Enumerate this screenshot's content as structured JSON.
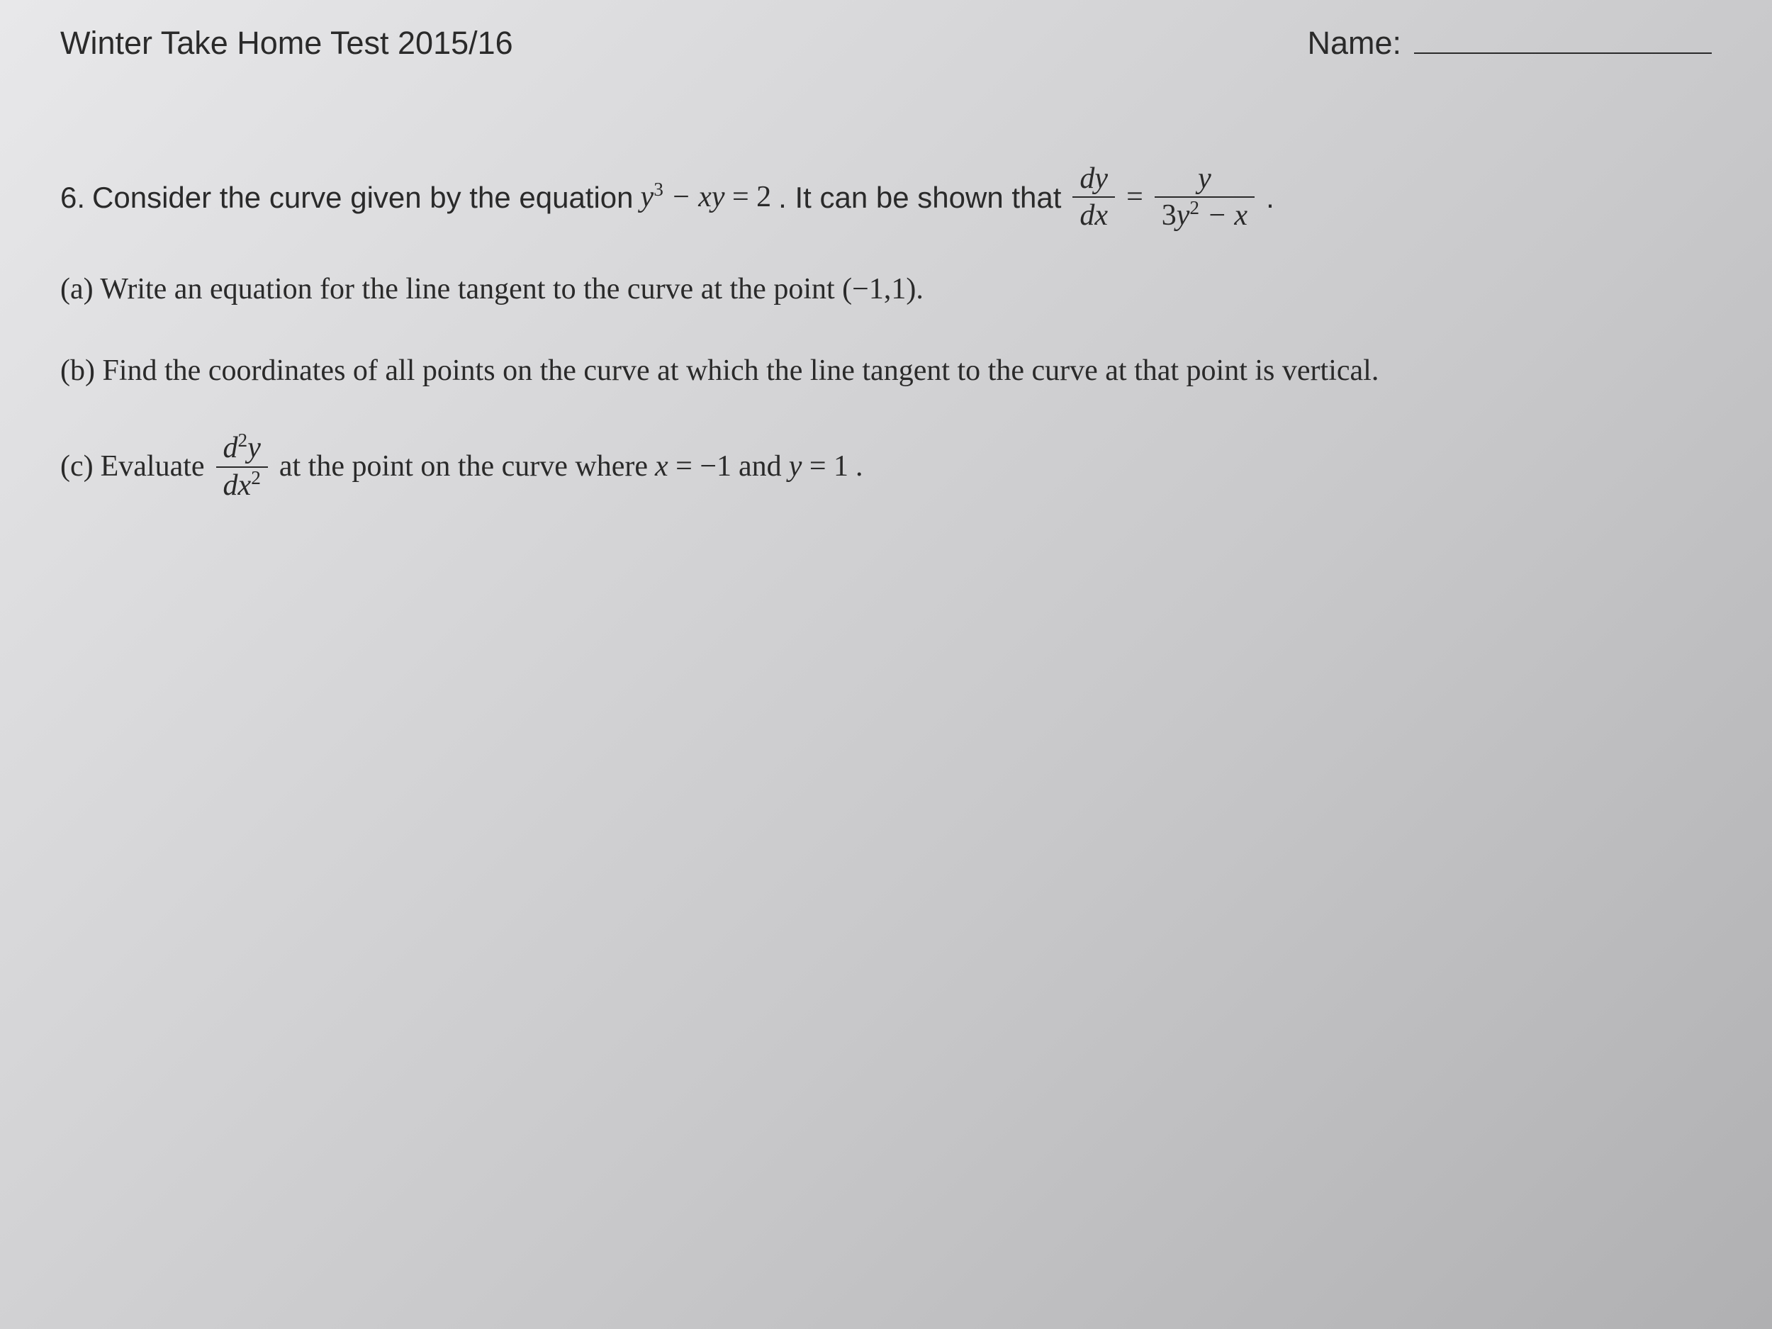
{
  "header": {
    "title": "Winter Take Home Test 2015/16",
    "name_label": "Name:"
  },
  "question": {
    "number": "6.",
    "intro_part1": "Consider the curve given by the equation",
    "equation": "y³ − xy = 2",
    "intro_part2": ". It can be shown that",
    "derivative": {
      "lhs_num": "dy",
      "lhs_den": "dx",
      "equals": "=",
      "rhs_num": "y",
      "rhs_den": "3y² − x"
    },
    "period": "."
  },
  "parts": {
    "a": {
      "label": "(a)",
      "text": "Write an equation for the line tangent to the curve at the point",
      "point": "(−1,1)",
      "period": "."
    },
    "b": {
      "label": "(b)",
      "text": "Find the coordinates of all points on the curve at which the line tangent to the curve at that point is vertical."
    },
    "c": {
      "label": "(c)",
      "text_before": "Evaluate",
      "second_deriv": {
        "num": "d²y",
        "den": "dx²"
      },
      "text_after1": "at the point on the curve where",
      "cond_x": "x = −1",
      "and": "and",
      "cond_y": "y = 1",
      "period": "."
    }
  },
  "style": {
    "body_font_size": 42,
    "title_font_size": 45,
    "text_color": "#2a2a2a",
    "background_gradient": [
      "#e8e8ea",
      "#d8d8da",
      "#c8c8ca",
      "#b0b0b2"
    ]
  }
}
